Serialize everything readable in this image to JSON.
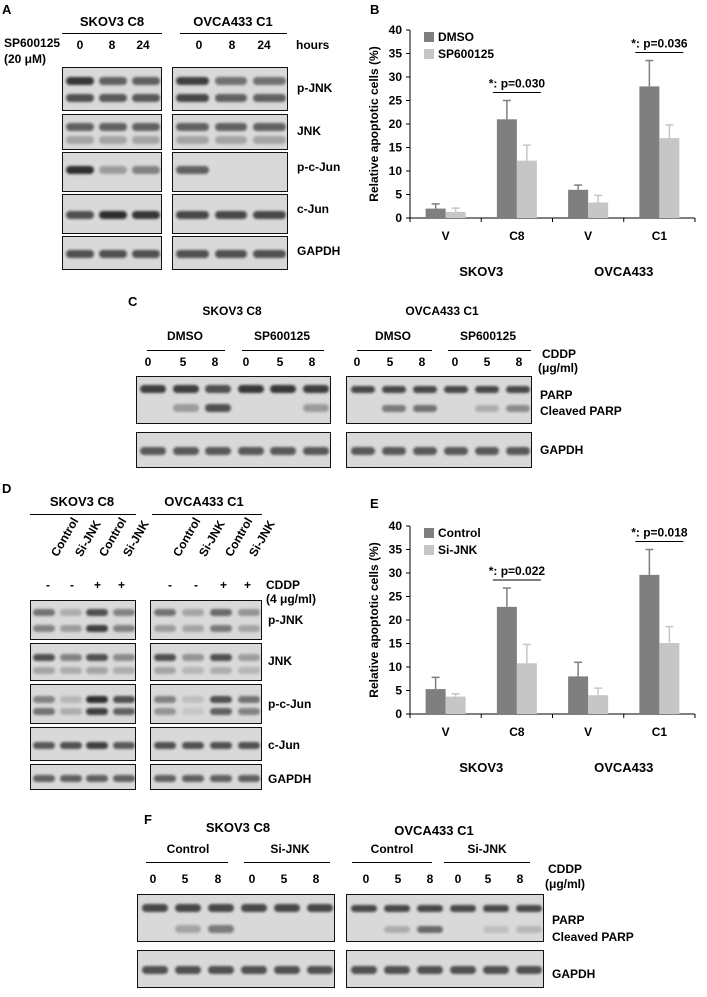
{
  "panelA": {
    "letter": "A",
    "treatment_label": "SP600125",
    "treatment_dose": "(20 μM)",
    "hours_label": "hours",
    "cells": [
      "SKOV3 C8",
      "OVCA433 C1"
    ],
    "timepoints": [
      "0",
      "8",
      "24"
    ],
    "rows": [
      "p-JNK",
      "JNK",
      "p-c-Jun",
      "c-Jun",
      "GAPDH"
    ]
  },
  "panelC": {
    "letter": "C",
    "cells": [
      "SKOV3 C8",
      "OVCA433 C1"
    ],
    "treatments": [
      "DMSO",
      "SP600125",
      "DMSO",
      "SP600125"
    ],
    "doses": [
      "0",
      "5",
      "8",
      "0",
      "5",
      "8",
      "0",
      "5",
      "8",
      "0",
      "5",
      "8"
    ],
    "cddp_label": "CDDP",
    "cddp_unit": "(μg/ml)",
    "rows": [
      "PARP",
      "Cleaved PARP",
      "GAPDH"
    ]
  },
  "panelD": {
    "letter": "D",
    "cells": [
      "SKOV3 C8",
      "OVCA433 C1"
    ],
    "lanes": [
      "Control",
      "Si-JNK",
      "Control",
      "Si-JNK",
      "Control",
      "Si-JNK",
      "Control",
      "Si-JNK"
    ],
    "signs": [
      "-",
      "-",
      "+",
      "+",
      "-",
      "-",
      "+",
      "+"
    ],
    "cddp_label": "CDDP",
    "cddp_dose": "(4 μg/ml)",
    "rows": [
      "p-JNK",
      "JNK",
      "p-c-Jun",
      "c-Jun",
      "GAPDH"
    ]
  },
  "panelF": {
    "letter": "F",
    "cells": [
      "SKOV3 C8",
      "OVCA433 C1"
    ],
    "treatments": [
      "Control",
      "Si-JNK",
      "Control",
      "Si-JNK"
    ],
    "doses": [
      "0",
      "5",
      "8",
      "0",
      "5",
      "8",
      "0",
      "5",
      "8",
      "0",
      "5",
      "8"
    ],
    "cddp_label": "CDDP",
    "cddp_unit": "(μg/ml)",
    "rows": [
      "PARP",
      "Cleaved PARP",
      "GAPDH"
    ]
  },
  "colors": {
    "dark_bar": "#7f7f7f",
    "light_bar": "#c6c6c6",
    "blot_bg": "#d9d9d9",
    "band": "#3a3a3a"
  },
  "chart_data": [
    {
      "panel": "B",
      "type": "bar",
      "categories": [
        "V",
        "C8",
        "V",
        "C1"
      ],
      "groups": [
        "SKOV3",
        "OVCA433"
      ],
      "series": [
        {
          "name": "DMSO",
          "values": [
            2.0,
            21.0,
            6.0,
            28.0
          ],
          "errors": [
            1.0,
            4.0,
            1.0,
            5.5
          ]
        },
        {
          "name": "SP600125",
          "values": [
            1.3,
            12.2,
            3.3,
            17.0
          ],
          "errors": [
            0.8,
            3.3,
            1.5,
            2.8
          ]
        }
      ],
      "ylabel": "Relative apoptotic cells (%)",
      "ylim": [
        0,
        40
      ],
      "yticks": [
        0,
        5,
        10,
        15,
        20,
        25,
        30,
        35,
        40
      ],
      "annotations": [
        "*: p=0.030",
        "*: p=0.036"
      ],
      "legend": "top-left"
    },
    {
      "panel": "E",
      "type": "bar",
      "categories": [
        "V",
        "C8",
        "V",
        "C1"
      ],
      "groups": [
        "SKOV3",
        "OVCA433"
      ],
      "series": [
        {
          "name": "Control",
          "values": [
            5.3,
            22.8,
            8.0,
            29.6
          ],
          "errors": [
            2.5,
            4.0,
            3.0,
            5.4
          ]
        },
        {
          "name": "Si-JNK",
          "values": [
            3.7,
            10.8,
            4.0,
            15.1
          ],
          "errors": [
            0.6,
            4.0,
            1.5,
            3.5
          ]
        }
      ],
      "ylabel": "Relative apoptotic cells (%)",
      "ylim": [
        0,
        40
      ],
      "yticks": [
        0,
        5,
        10,
        15,
        20,
        25,
        30,
        35,
        40
      ],
      "annotations": [
        "*: p=0.022",
        "*: p=0.018"
      ],
      "legend": "top-left"
    }
  ]
}
